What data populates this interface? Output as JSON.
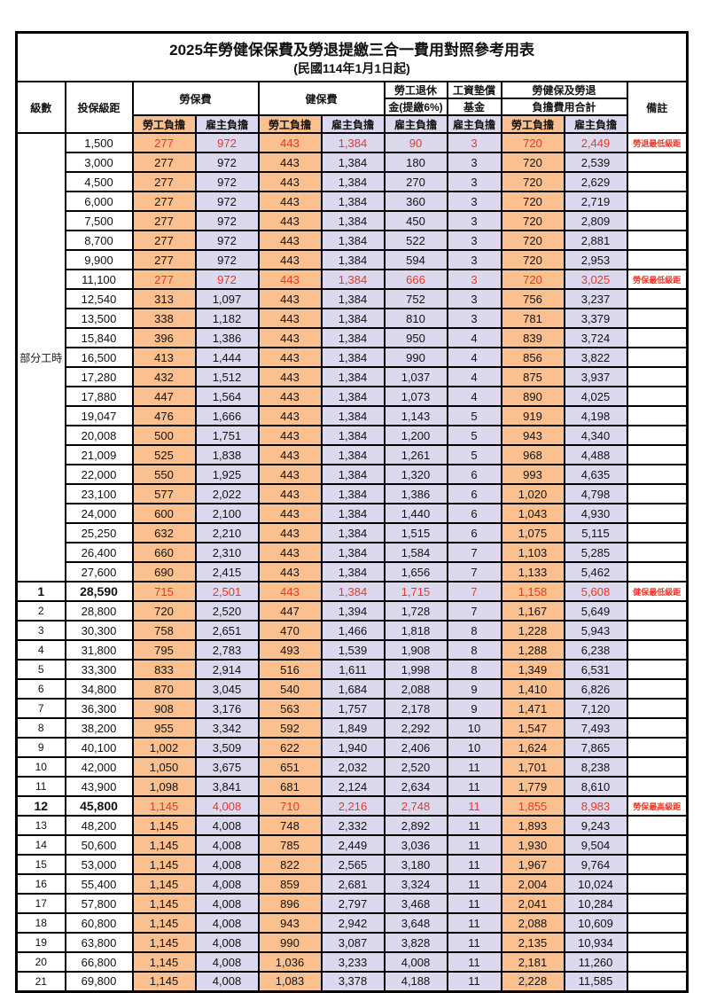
{
  "title": {
    "line1": "2025年勞健保保費及勞退提繳三合一費用對照參考用表",
    "line2": "(民國114年1月1日起)"
  },
  "colors": {
    "employee_fill": "#fac090",
    "employer_fill": "#dcd9ee",
    "highlight_red": "#ee3524",
    "border": "#000000"
  },
  "table": {
    "headers": {
      "grade": "級數",
      "salary": "投保級距",
      "labor_insurance": "勞保費",
      "health_insurance": "健保費",
      "pension_line1": "勞工退休",
      "pension_line2": "金(提繳6%)",
      "wage_fund_line1": "工資墊償",
      "wage_fund_line2": "基金",
      "total_line1": "勞健保及勞退",
      "total_line2": "負擔費用合計",
      "remark": "備註",
      "employee": "勞工負擔",
      "employer": "雇主負擔"
    },
    "part_time_label": "部分工時",
    "part_time_rows": [
      {
        "salary": "1,500",
        "values": [
          "277",
          "972",
          "443",
          "1,384",
          "90",
          "3",
          "720",
          "2,449"
        ],
        "remark": "勞退最低級距",
        "red": true
      },
      {
        "salary": "3,000",
        "values": [
          "277",
          "972",
          "443",
          "1,384",
          "180",
          "3",
          "720",
          "2,539"
        ]
      },
      {
        "salary": "4,500",
        "values": [
          "277",
          "972",
          "443",
          "1,384",
          "270",
          "3",
          "720",
          "2,629"
        ]
      },
      {
        "salary": "6,000",
        "values": [
          "277",
          "972",
          "443",
          "1,384",
          "360",
          "3",
          "720",
          "2,719"
        ]
      },
      {
        "salary": "7,500",
        "values": [
          "277",
          "972",
          "443",
          "1,384",
          "450",
          "3",
          "720",
          "2,809"
        ]
      },
      {
        "salary": "8,700",
        "values": [
          "277",
          "972",
          "443",
          "1,384",
          "522",
          "3",
          "720",
          "2,881"
        ]
      },
      {
        "salary": "9,900",
        "values": [
          "277",
          "972",
          "443",
          "1,384",
          "594",
          "3",
          "720",
          "2,953"
        ]
      },
      {
        "salary": "11,100",
        "values": [
          "277",
          "972",
          "443",
          "1,384",
          "666",
          "3",
          "720",
          "3,025"
        ],
        "remark": "勞保最低級距",
        "red": true
      },
      {
        "salary": "12,540",
        "values": [
          "313",
          "1,097",
          "443",
          "1,384",
          "752",
          "3",
          "756",
          "3,237"
        ]
      },
      {
        "salary": "13,500",
        "values": [
          "338",
          "1,182",
          "443",
          "1,384",
          "810",
          "3",
          "781",
          "3,379"
        ]
      },
      {
        "salary": "15,840",
        "values": [
          "396",
          "1,386",
          "443",
          "1,384",
          "950",
          "4",
          "839",
          "3,724"
        ]
      },
      {
        "salary": "16,500",
        "values": [
          "413",
          "1,444",
          "443",
          "1,384",
          "990",
          "4",
          "856",
          "3,822"
        ]
      },
      {
        "salary": "17,280",
        "values": [
          "432",
          "1,512",
          "443",
          "1,384",
          "1,037",
          "4",
          "875",
          "3,937"
        ]
      },
      {
        "salary": "17,880",
        "values": [
          "447",
          "1,564",
          "443",
          "1,384",
          "1,073",
          "4",
          "890",
          "4,025"
        ]
      },
      {
        "salary": "19,047",
        "values": [
          "476",
          "1,666",
          "443",
          "1,384",
          "1,143",
          "5",
          "919",
          "4,198"
        ]
      },
      {
        "salary": "20,008",
        "values": [
          "500",
          "1,751",
          "443",
          "1,384",
          "1,200",
          "5",
          "943",
          "4,340"
        ]
      },
      {
        "salary": "21,009",
        "values": [
          "525",
          "1,838",
          "443",
          "1,384",
          "1,261",
          "5",
          "968",
          "4,488"
        ]
      },
      {
        "salary": "22,000",
        "values": [
          "550",
          "1,925",
          "443",
          "1,384",
          "1,320",
          "6",
          "993",
          "4,635"
        ]
      },
      {
        "salary": "23,100",
        "values": [
          "577",
          "2,022",
          "443",
          "1,384",
          "1,386",
          "6",
          "1,020",
          "4,798"
        ]
      },
      {
        "salary": "24,000",
        "values": [
          "600",
          "2,100",
          "443",
          "1,384",
          "1,440",
          "6",
          "1,043",
          "4,930"
        ]
      },
      {
        "salary": "25,250",
        "values": [
          "632",
          "2,210",
          "443",
          "1,384",
          "1,515",
          "6",
          "1,075",
          "5,115"
        ]
      },
      {
        "salary": "26,400",
        "values": [
          "660",
          "2,310",
          "443",
          "1,384",
          "1,584",
          "7",
          "1,103",
          "5,285"
        ]
      },
      {
        "salary": "27,600",
        "values": [
          "690",
          "2,415",
          "443",
          "1,384",
          "1,656",
          "7",
          "1,133",
          "5,462"
        ]
      }
    ],
    "graded_rows": [
      {
        "grade": "1",
        "salary": "28,590",
        "values": [
          "715",
          "2,501",
          "443",
          "1,384",
          "1,715",
          "7",
          "1,158",
          "5,608"
        ],
        "remark": "健保最低級距",
        "red": true,
        "bold": true
      },
      {
        "grade": "2",
        "salary": "28,800",
        "values": [
          "720",
          "2,520",
          "447",
          "1,394",
          "1,728",
          "7",
          "1,167",
          "5,649"
        ]
      },
      {
        "grade": "3",
        "salary": "30,300",
        "values": [
          "758",
          "2,651",
          "470",
          "1,466",
          "1,818",
          "8",
          "1,228",
          "5,943"
        ]
      },
      {
        "grade": "4",
        "salary": "31,800",
        "values": [
          "795",
          "2,783",
          "493",
          "1,539",
          "1,908",
          "8",
          "1,288",
          "6,238"
        ]
      },
      {
        "grade": "5",
        "salary": "33,300",
        "values": [
          "833",
          "2,914",
          "516",
          "1,611",
          "1,998",
          "8",
          "1,349",
          "6,531"
        ]
      },
      {
        "grade": "6",
        "salary": "34,800",
        "values": [
          "870",
          "3,045",
          "540",
          "1,684",
          "2,088",
          "9",
          "1,410",
          "6,826"
        ]
      },
      {
        "grade": "7",
        "salary": "36,300",
        "values": [
          "908",
          "3,176",
          "563",
          "1,757",
          "2,178",
          "9",
          "1,471",
          "7,120"
        ]
      },
      {
        "grade": "8",
        "salary": "38,200",
        "values": [
          "955",
          "3,342",
          "592",
          "1,849",
          "2,292",
          "10",
          "1,547",
          "7,493"
        ]
      },
      {
        "grade": "9",
        "salary": "40,100",
        "values": [
          "1,002",
          "3,509",
          "622",
          "1,940",
          "2,406",
          "10",
          "1,624",
          "7,865"
        ]
      },
      {
        "grade": "10",
        "salary": "42,000",
        "values": [
          "1,050",
          "3,675",
          "651",
          "2,032",
          "2,520",
          "11",
          "1,701",
          "8,238"
        ]
      },
      {
        "grade": "11",
        "salary": "43,900",
        "values": [
          "1,098",
          "3,841",
          "681",
          "2,124",
          "2,634",
          "11",
          "1,779",
          "8,610"
        ]
      },
      {
        "grade": "12",
        "salary": "45,800",
        "values": [
          "1,145",
          "4,008",
          "710",
          "2,216",
          "2,748",
          "11",
          "1,855",
          "8,983"
        ],
        "remark": "勞保最高級距",
        "red": true,
        "bold": true
      },
      {
        "grade": "13",
        "salary": "48,200",
        "values": [
          "1,145",
          "4,008",
          "748",
          "2,332",
          "2,892",
          "11",
          "1,893",
          "9,243"
        ]
      },
      {
        "grade": "14",
        "salary": "50,600",
        "values": [
          "1,145",
          "4,008",
          "785",
          "2,449",
          "3,036",
          "11",
          "1,930",
          "9,504"
        ]
      },
      {
        "grade": "15",
        "salary": "53,000",
        "values": [
          "1,145",
          "4,008",
          "822",
          "2,565",
          "3,180",
          "11",
          "1,967",
          "9,764"
        ]
      },
      {
        "grade": "16",
        "salary": "55,400",
        "values": [
          "1,145",
          "4,008",
          "859",
          "2,681",
          "3,324",
          "11",
          "2,004",
          "10,024"
        ]
      },
      {
        "grade": "17",
        "salary": "57,800",
        "values": [
          "1,145",
          "4,008",
          "896",
          "2,797",
          "3,468",
          "11",
          "2,041",
          "10,284"
        ]
      },
      {
        "grade": "18",
        "salary": "60,800",
        "values": [
          "1,145",
          "4,008",
          "943",
          "2,942",
          "3,648",
          "11",
          "2,088",
          "10,609"
        ]
      },
      {
        "grade": "19",
        "salary": "63,800",
        "values": [
          "1,145",
          "4,008",
          "990",
          "3,087",
          "3,828",
          "11",
          "2,135",
          "10,934"
        ]
      },
      {
        "grade": "20",
        "salary": "66,800",
        "values": [
          "1,145",
          "4,008",
          "1,036",
          "3,233",
          "4,008",
          "11",
          "2,181",
          "11,260"
        ]
      },
      {
        "grade": "21",
        "salary": "69,800",
        "values": [
          "1,145",
          "4,008",
          "1,083",
          "3,378",
          "4,188",
          "11",
          "2,228",
          "11,585"
        ]
      }
    ]
  }
}
